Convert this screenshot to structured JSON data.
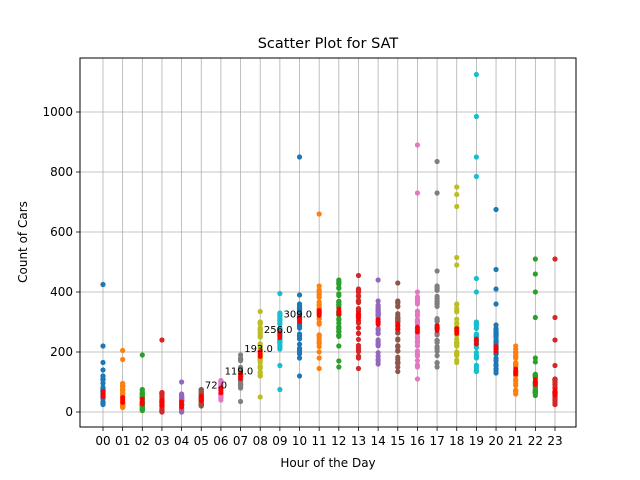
{
  "chart_data": {
    "type": "scatter",
    "title": "Scatter Plot for SAT",
    "xlabel": "Hour of the Day",
    "ylabel": "Count of Cars",
    "ylim": [
      -50,
      1180
    ],
    "yticks": [
      0,
      200,
      400,
      600,
      800,
      1000
    ],
    "grid": true,
    "categories": [
      "00",
      "01",
      "02",
      "03",
      "04",
      "05",
      "06",
      "07",
      "08",
      "09",
      "10",
      "11",
      "12",
      "13",
      "14",
      "15",
      "16",
      "17",
      "18",
      "19",
      "20",
      "21",
      "22",
      "23"
    ],
    "colors": [
      "#1f77b4",
      "#ff7f0e",
      "#2ca02c",
      "#d62728",
      "#9467bd",
      "#8c564b",
      "#e377c2",
      "#7f7f7f",
      "#bcbd22",
      "#17becf"
    ],
    "median_color": "#ff0000",
    "series": [
      {
        "hour": "00",
        "min": 25,
        "max": 120,
        "median": 60,
        "outliers": [
          140,
          165,
          220,
          425
        ]
      },
      {
        "hour": "01",
        "min": 15,
        "max": 95,
        "median": 40,
        "outliers": [
          175,
          205
        ]
      },
      {
        "hour": "02",
        "min": 5,
        "max": 75,
        "median": 35,
        "outliers": [
          190
        ]
      },
      {
        "hour": "03",
        "min": 0,
        "max": 65,
        "median": 30,
        "outliers": [
          240
        ]
      },
      {
        "hour": "04",
        "min": 0,
        "max": 60,
        "median": 25,
        "outliers": [
          100
        ]
      },
      {
        "hour": "05",
        "min": 20,
        "max": 75,
        "median": 45,
        "outliers": []
      },
      {
        "hour": "06",
        "min": 40,
        "max": 105,
        "median": 72,
        "outliers": []
      },
      {
        "hour": "07",
        "min": 80,
        "max": 190,
        "median": 119,
        "outliers": [
          35
        ]
      },
      {
        "hour": "08",
        "min": 120,
        "max": 300,
        "median": 193,
        "outliers": [
          50,
          335
        ]
      },
      {
        "hour": "09",
        "min": 210,
        "max": 330,
        "median": 256,
        "outliers": [
          75,
          155,
          395
        ]
      },
      {
        "hour": "10",
        "min": 180,
        "max": 360,
        "median": 309,
        "outliers": [
          120,
          390,
          850
        ]
      },
      {
        "hour": "11",
        "min": 180,
        "max": 420,
        "median": 330,
        "outliers": [
          145,
          660
        ]
      },
      {
        "hour": "12",
        "min": 220,
        "max": 440,
        "median": 335,
        "outliers": [
          150,
          170
        ]
      },
      {
        "hour": "13",
        "min": 180,
        "max": 410,
        "median": 320,
        "outliers": [
          145,
          455
        ]
      },
      {
        "hour": "14",
        "min": 160,
        "max": 370,
        "median": 300,
        "outliers": [
          440
        ]
      },
      {
        "hour": "15",
        "min": 135,
        "max": 370,
        "median": 285,
        "outliers": [
          430
        ]
      },
      {
        "hour": "16",
        "min": 150,
        "max": 400,
        "median": 275,
        "outliers": [
          110,
          730,
          890
        ]
      },
      {
        "hour": "17",
        "min": 150,
        "max": 420,
        "median": 280,
        "outliers": [
          470,
          730,
          835
        ]
      },
      {
        "hour": "18",
        "min": 165,
        "max": 360,
        "median": 270,
        "outliers": [
          490,
          515,
          685,
          725,
          750
        ]
      },
      {
        "hour": "19",
        "min": 135,
        "max": 300,
        "median": 235,
        "outliers": [
          400,
          445,
          785,
          850,
          985,
          1125
        ]
      },
      {
        "hour": "20",
        "min": 130,
        "max": 290,
        "median": 210,
        "outliers": [
          360,
          410,
          475,
          675
        ]
      },
      {
        "hour": "21",
        "min": 60,
        "max": 220,
        "median": 135,
        "outliers": []
      },
      {
        "hour": "22",
        "min": 55,
        "max": 180,
        "median": 100,
        "outliers": [
          315,
          400,
          460,
          510
        ]
      },
      {
        "hour": "23",
        "min": 25,
        "max": 110,
        "median": 65,
        "outliers": [
          155,
          240,
          315,
          510
        ]
      }
    ],
    "annotations": [
      {
        "hour": "06",
        "label": "72.0"
      },
      {
        "hour": "07",
        "label": "119.0"
      },
      {
        "hour": "08",
        "label": "193.0"
      },
      {
        "hour": "09",
        "label": "256.0"
      },
      {
        "hour": "10",
        "label": "309.0"
      }
    ]
  }
}
